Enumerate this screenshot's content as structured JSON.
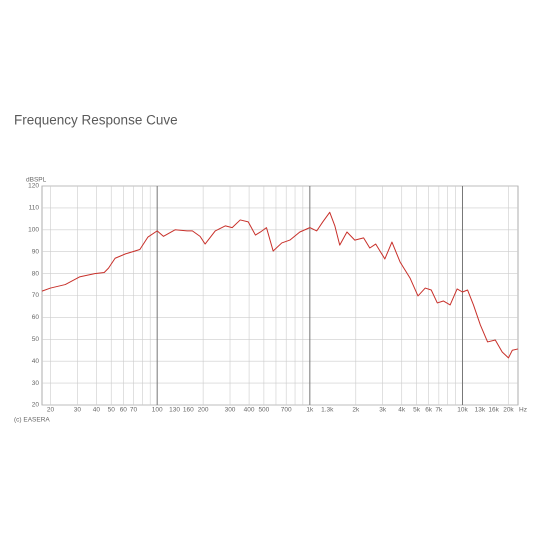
{
  "chart_data": {
    "type": "line",
    "title": "Frequency Response Cuve",
    "ylabel": "dBSPL",
    "xunit": "Hz",
    "footer": "(c) EASERA",
    "log_x": true,
    "grid": true,
    "xlim": [
      17.6,
      23100
    ],
    "ylim": [
      20,
      120
    ],
    "yticks": [
      20,
      30,
      40,
      50,
      60,
      70,
      80,
      90,
      100,
      110,
      120
    ],
    "xticks": [
      20,
      30,
      40,
      50,
      60,
      70,
      100,
      130,
      160,
      200,
      300,
      400,
      500,
      700,
      {
        "value": 1000,
        "label": "1k"
      },
      {
        "value": 1300,
        "label": "1.3k"
      },
      {
        "value": 2000,
        "label": "2k"
      },
      {
        "value": 3000,
        "label": "3k"
      },
      {
        "value": 4000,
        "label": "4k"
      },
      {
        "value": 5000,
        "label": "5k"
      },
      {
        "value": 6000,
        "label": "6k"
      },
      {
        "value": 7000,
        "label": "7k"
      },
      {
        "value": 10000,
        "label": "10k"
      },
      {
        "value": 13000,
        "label": "13k"
      },
      {
        "value": 16000,
        "label": "16k"
      },
      {
        "value": 20000,
        "label": "20k"
      }
    ],
    "x_grid": [
      20,
      30,
      40,
      50,
      60,
      70,
      80,
      90,
      100,
      200,
      300,
      400,
      500,
      600,
      700,
      800,
      900,
      1000,
      2000,
      3000,
      4000,
      5000,
      6000,
      7000,
      8000,
      9000,
      10000,
      20000
    ],
    "x": [
      17.6,
      20,
      25,
      31,
      39,
      45,
      48,
      53,
      62,
      77,
      87,
      100,
      110,
      131,
      157,
      170,
      191,
      206,
      240,
      280,
      310,
      350,
      395,
      440,
      475,
      520,
      575,
      655,
      740,
      860,
      1000,
      1110,
      1215,
      1350,
      1460,
      1570,
      1750,
      1970,
      2250,
      2470,
      2700,
      3100,
      3450,
      3900,
      4530,
      5110,
      5700,
      6240,
      6840,
      7490,
      8300,
      9220,
      10000,
      10800,
      11800,
      13100,
      14600,
      16400,
      18200,
      20000,
      21200,
      23100
    ],
    "series": [
      {
        "name": "Frequency Response",
        "color": "#c8302a",
        "values": [
          72,
          73.4,
          75,
          78.5,
          80,
          80.5,
          82.5,
          87,
          89,
          91,
          96.7,
          99.5,
          97,
          100,
          99.5,
          99.5,
          97,
          93.5,
          99.5,
          101.8,
          101,
          104.5,
          103.6,
          97.6,
          99,
          101,
          90.3,
          94,
          95.3,
          99,
          101,
          99.5,
          103.6,
          108,
          101.7,
          93,
          99,
          95.3,
          96.3,
          91.7,
          93.5,
          86.7,
          94.4,
          85.3,
          78,
          69.8,
          73.4,
          72.5,
          66.6,
          67.5,
          65.7,
          73,
          71.6,
          72.5,
          65.7,
          56.5,
          48.8,
          49.7,
          44.2,
          41.5,
          45,
          45.6
        ]
      }
    ]
  }
}
